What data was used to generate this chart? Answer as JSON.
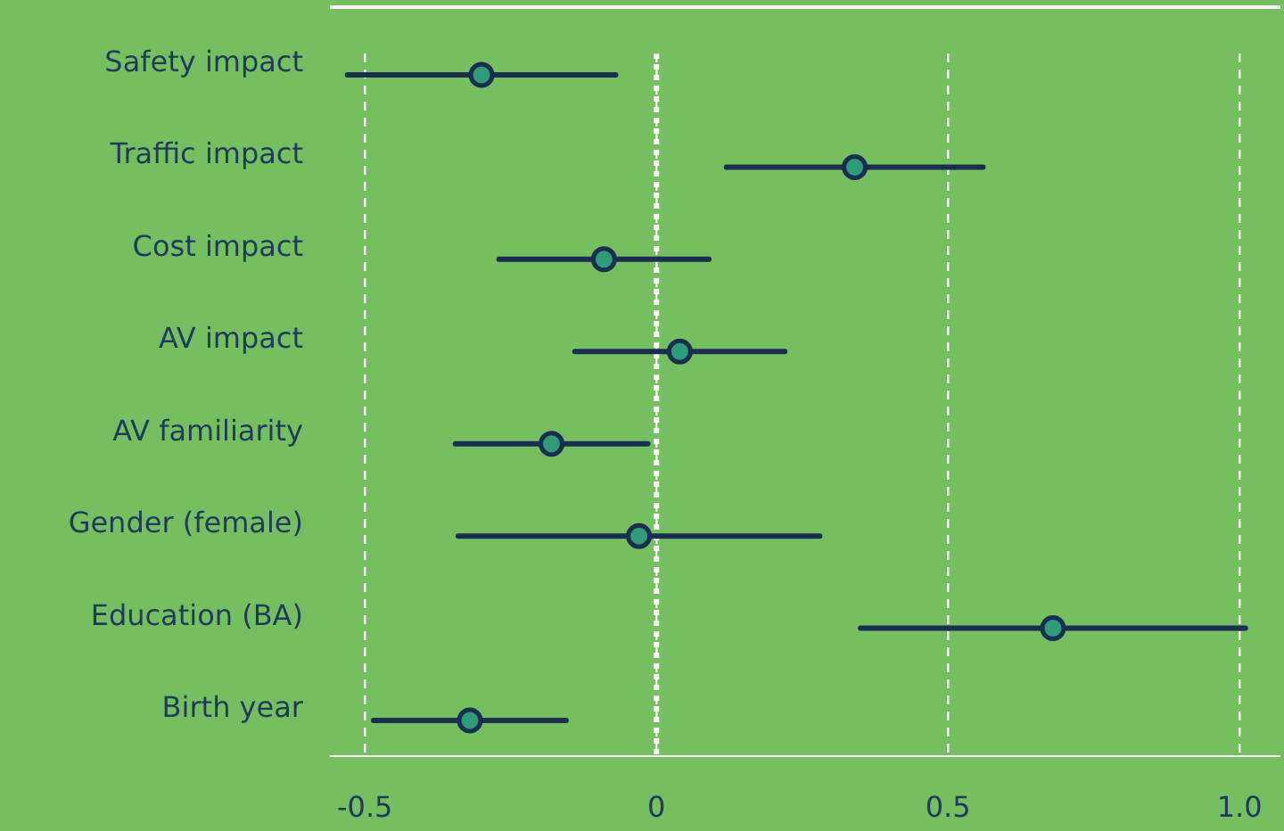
{
  "chart_data": {
    "type": "scatter",
    "orientation": "horizontal",
    "categories": [
      "Safety impact",
      "Traffic impact",
      "Cost impact",
      "AV impact",
      "AV familiarity",
      "Gender (female)",
      "Education (BA)",
      "Birth year"
    ],
    "series": [
      {
        "color": "#2f9b78",
        "values": [
          -0.3,
          0.34,
          -0.09,
          0.04,
          -0.18,
          -0.03,
          0.68,
          -0.32
        ],
        "errors": [
          0.23,
          0.22,
          0.18,
          0.18,
          0.165,
          0.31,
          0.33,
          0.165
        ]
      }
    ],
    "xlim": [
      -0.56,
      1.07
    ],
    "xticks": [
      -0.5,
      0,
      0.5,
      {
        "value": 1,
        "label": "1.0"
      }
    ],
    "grid": "x",
    "marker": "circle",
    "ref_lines": [
      {
        "axis": "x",
        "value": 0,
        "color": "#ffffff",
        "line_style": "dotted"
      }
    ]
  }
}
